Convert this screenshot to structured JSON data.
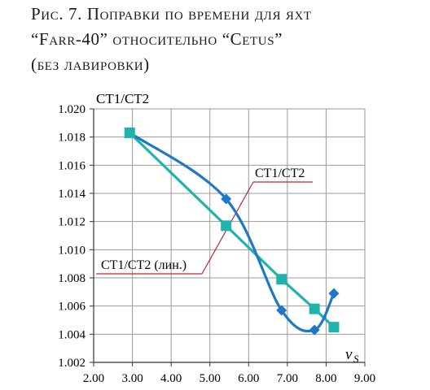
{
  "caption": {
    "line1": "Рис. 7. Поправки по времени для яхт",
    "line2": "“Farr-40” относительно “Cetus”",
    "line3": "(без лавировки)"
  },
  "colors": {
    "series_dark": "#1e78c8",
    "series_light": "#1fb3ad",
    "annotation": "#c0282e",
    "grid": "#9a9a9a"
  },
  "chart_data": {
    "type": "line",
    "ylabel": "CT1/CT2",
    "xlabel": "vS",
    "xlim": [
      2.0,
      9.0
    ],
    "ylim": [
      1.002,
      1.02
    ],
    "x_ticks": [
      "2.00",
      "3.00",
      "4.00",
      "5.00",
      "6.00",
      "7.00",
      "8.00",
      "9.00"
    ],
    "y_ticks": [
      "1.002",
      "1.004",
      "1.006",
      "1.008",
      "1.010",
      "1.012",
      "1.014",
      "1.016",
      "1.018",
      "1.020"
    ],
    "grid": true,
    "series": [
      {
        "name": "CT1/CT2",
        "marker": "diamond",
        "color": "#1e78c8",
        "x": [
          2.93,
          5.42,
          6.85,
          7.7,
          8.2
        ],
        "y": [
          1.0183,
          1.0136,
          1.0057,
          1.0043,
          1.0069
        ]
      },
      {
        "name": "CT1/CT2 (лин.)",
        "marker": "square",
        "color": "#1fb3ad",
        "x": [
          2.93,
          5.42,
          6.85,
          7.7,
          8.2
        ],
        "y": [
          1.0183,
          1.0117,
          1.0079,
          1.0058,
          1.0045
        ]
      }
    ]
  }
}
